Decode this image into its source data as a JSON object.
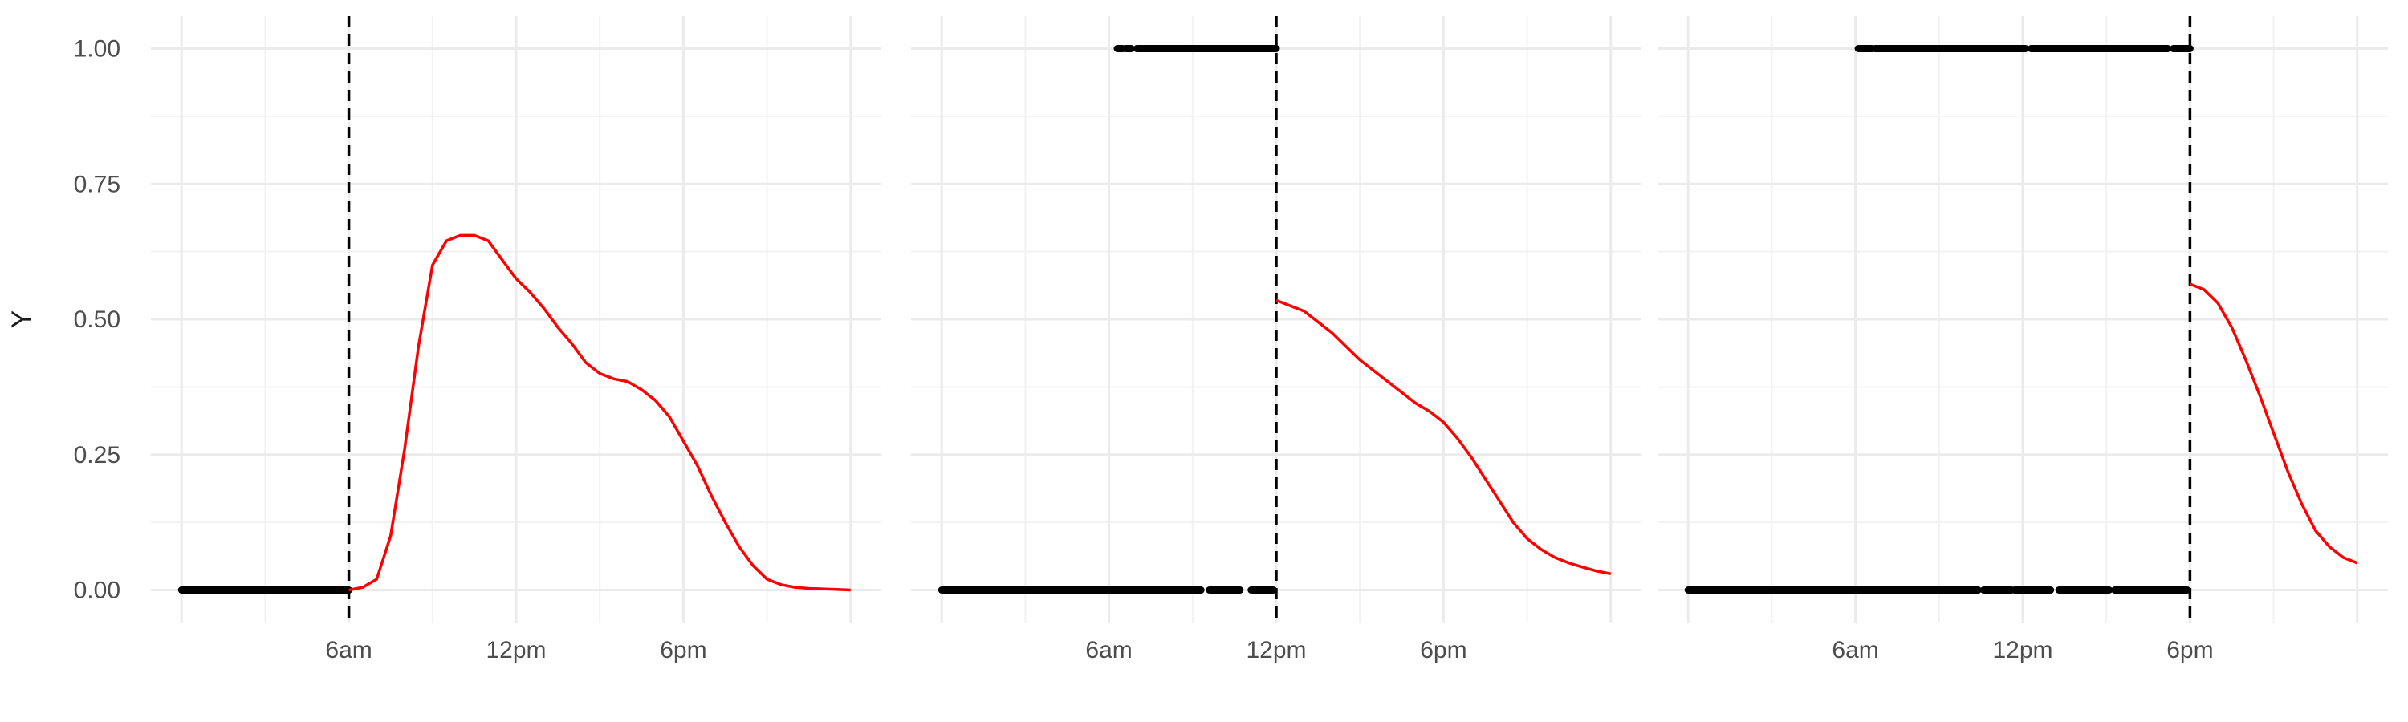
{
  "chart_data": {
    "type": "line",
    "ylabel": "Y",
    "xlabel": "",
    "ylim": [
      -0.06,
      1.06
    ],
    "yticks": [
      0,
      0.25,
      0.5,
      0.75,
      1
    ],
    "ytick_labels": [
      "0.00",
      "0.25",
      "0.50",
      "0.75",
      "1.00"
    ],
    "xlim_hours": [
      -1.1,
      25.1
    ],
    "xticks_hours": [
      6,
      12,
      18
    ],
    "xtick_labels": [
      "6am",
      "12pm",
      "6pm"
    ],
    "grid": true,
    "colors": {
      "curve": "#ff0000",
      "points": "#000000",
      "cutoff": "#000000",
      "grid": "#ebebeb"
    },
    "panels": [
      {
        "cutoff_hour": 6,
        "zeros_segments": [
          [
            0,
            6
          ]
        ],
        "ones_segments": [],
        "curve": {
          "x": [
            6,
            6.5,
            7,
            7.5,
            8,
            8.5,
            9,
            9.5,
            10,
            10.5,
            11,
            11.5,
            12,
            12.5,
            13,
            13.5,
            14,
            14.5,
            15,
            15.5,
            16,
            16.5,
            17,
            17.5,
            18,
            18.5,
            19,
            19.5,
            20,
            20.5,
            21,
            21.5,
            22,
            22.5,
            23,
            23.5,
            24
          ],
          "y": [
            0.0,
            0.005,
            0.02,
            0.1,
            0.26,
            0.45,
            0.6,
            0.645,
            0.655,
            0.655,
            0.645,
            0.61,
            0.575,
            0.55,
            0.52,
            0.485,
            0.455,
            0.42,
            0.4,
            0.39,
            0.385,
            0.37,
            0.35,
            0.32,
            0.275,
            0.23,
            0.175,
            0.125,
            0.08,
            0.045,
            0.02,
            0.01,
            0.005,
            0.003,
            0.002,
            0.001,
            0.0
          ]
        }
      },
      {
        "cutoff_hour": 12,
        "zeros_segments": [
          [
            0,
            9.3
          ],
          [
            9.6,
            10.7
          ],
          [
            11.1,
            11.9
          ]
        ],
        "ones_segments": [
          [
            6.3,
            6.5
          ],
          [
            6.6,
            6.8
          ],
          [
            7.0,
            12
          ]
        ],
        "curve": {
          "x": [
            12,
            12.5,
            13,
            13.5,
            14,
            14.5,
            15,
            15.5,
            16,
            16.5,
            17,
            17.5,
            18,
            18.5,
            19,
            19.5,
            20,
            20.5,
            21,
            21.5,
            22,
            22.5,
            23,
            23.5,
            24
          ],
          "y": [
            0.535,
            0.525,
            0.515,
            0.495,
            0.475,
            0.45,
            0.425,
            0.405,
            0.385,
            0.365,
            0.345,
            0.33,
            0.31,
            0.28,
            0.245,
            0.205,
            0.165,
            0.125,
            0.095,
            0.075,
            0.06,
            0.05,
            0.042,
            0.035,
            0.03
          ]
        }
      },
      {
        "cutoff_hour": 18,
        "zeros_segments": [
          [
            0,
            10.4
          ],
          [
            10.6,
            11.6
          ],
          [
            11.7,
            13.0
          ],
          [
            13.3,
            15.1
          ],
          [
            15.3,
            17.9
          ]
        ],
        "ones_segments": [
          [
            6.1,
            6.6
          ],
          [
            6.7,
            12.1
          ],
          [
            12.3,
            17.2
          ],
          [
            17.4,
            18
          ]
        ],
        "curve": {
          "x": [
            18,
            18.5,
            19,
            19.5,
            20,
            20.5,
            21,
            21.5,
            22,
            22.5,
            23,
            23.5,
            24
          ],
          "y": [
            0.565,
            0.555,
            0.53,
            0.485,
            0.425,
            0.36,
            0.29,
            0.22,
            0.16,
            0.11,
            0.08,
            0.06,
            0.05
          ]
        }
      }
    ]
  }
}
